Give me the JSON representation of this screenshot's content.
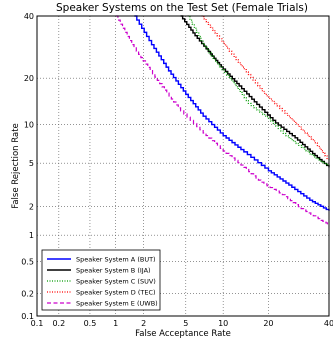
{
  "chart_data": {
    "type": "line",
    "title": "Speaker Systems on the Test Set (Female Trials)",
    "xlabel": "False Acceptance Rate",
    "ylabel": "False Rejection Rate",
    "scale": "probit",
    "xlim": [
      0.1,
      40
    ],
    "ylim": [
      0.1,
      40
    ],
    "x_ticks": [
      {
        "value": 0.1,
        "label": "0.1"
      },
      {
        "value": 0.2,
        "label": "0.2"
      },
      {
        "value": 0.5,
        "label": "0.5"
      },
      {
        "value": 1,
        "label": "1"
      },
      {
        "value": 2,
        "label": "2"
      },
      {
        "value": 5,
        "label": "5"
      },
      {
        "value": 10,
        "label": "10"
      },
      {
        "value": 20,
        "label": "20"
      },
      {
        "value": 40,
        "label": "40"
      }
    ],
    "y_ticks": [
      {
        "value": 0.1,
        "label": "0.1"
      },
      {
        "value": 0.2,
        "label": "0.2"
      },
      {
        "value": 0.5,
        "label": "0.5"
      },
      {
        "value": 1,
        "label": "1"
      },
      {
        "value": 2,
        "label": "2"
      },
      {
        "value": 5,
        "label": "5"
      },
      {
        "value": 10,
        "label": "10"
      },
      {
        "value": 20,
        "label": "20"
      },
      {
        "value": 40,
        "label": "40"
      }
    ],
    "grid": true,
    "legend_position": "bottom-left",
    "series": [
      {
        "name": "Speaker System A (BUT)",
        "color": "#0000ff",
        "style": "solid",
        "points": [
          [
            1.6,
            40
          ],
          [
            2.4,
            30
          ],
          [
            3.5,
            22
          ],
          [
            5,
            16
          ],
          [
            7,
            11.5
          ],
          [
            10,
            8.3
          ],
          [
            14,
            6.2
          ],
          [
            20,
            4.3
          ],
          [
            26,
            3.2
          ],
          [
            33,
            2.3
          ],
          [
            40,
            1.8
          ]
        ]
      },
      {
        "name": "Speaker System B (IJA)",
        "color": "#000000",
        "style": "solid",
        "points": [
          [
            4.5,
            40
          ],
          [
            6,
            33
          ],
          [
            8,
            27
          ],
          [
            10,
            22.5
          ],
          [
            13,
            18
          ],
          [
            17,
            13.8
          ],
          [
            22,
            10.3
          ],
          [
            28,
            8
          ],
          [
            34,
            6
          ],
          [
            40,
            4.6
          ]
        ]
      },
      {
        "name": "Speaker System C (SUV)",
        "color": "#009900",
        "style": "dotted",
        "points": [
          [
            5.2,
            40
          ],
          [
            7,
            30
          ],
          [
            9,
            24
          ],
          [
            12,
            18.5
          ],
          [
            15,
            14
          ],
          [
            20,
            11
          ],
          [
            25,
            8.3
          ],
          [
            31,
            6.5
          ],
          [
            36,
            5.3
          ],
          [
            40,
            4.7
          ]
        ]
      },
      {
        "name": "Speaker System D (TEC)",
        "color": "#ff0000",
        "style": "dotted",
        "points": [
          [
            6.8,
            40
          ],
          [
            9,
            33
          ],
          [
            12,
            26
          ],
          [
            15,
            21
          ],
          [
            19,
            16
          ],
          [
            24,
            12.5
          ],
          [
            30,
            9.3
          ],
          [
            35,
            7.3
          ],
          [
            40,
            5.2
          ]
        ]
      },
      {
        "name": "Speaker System E (UWB)",
        "color": "#cc00cc",
        "style": "dashed",
        "points": [
          [
            1.0,
            40
          ],
          [
            1.5,
            30
          ],
          [
            2.2,
            23
          ],
          [
            3.2,
            17
          ],
          [
            4.5,
            12.5
          ],
          [
            7,
            8.7
          ],
          [
            10,
            6.3
          ],
          [
            14,
            4.6
          ],
          [
            18,
            3.4
          ],
          [
            24,
            2.6
          ],
          [
            30,
            1.9
          ],
          [
            36,
            1.5
          ],
          [
            40,
            1.3
          ]
        ]
      }
    ]
  }
}
